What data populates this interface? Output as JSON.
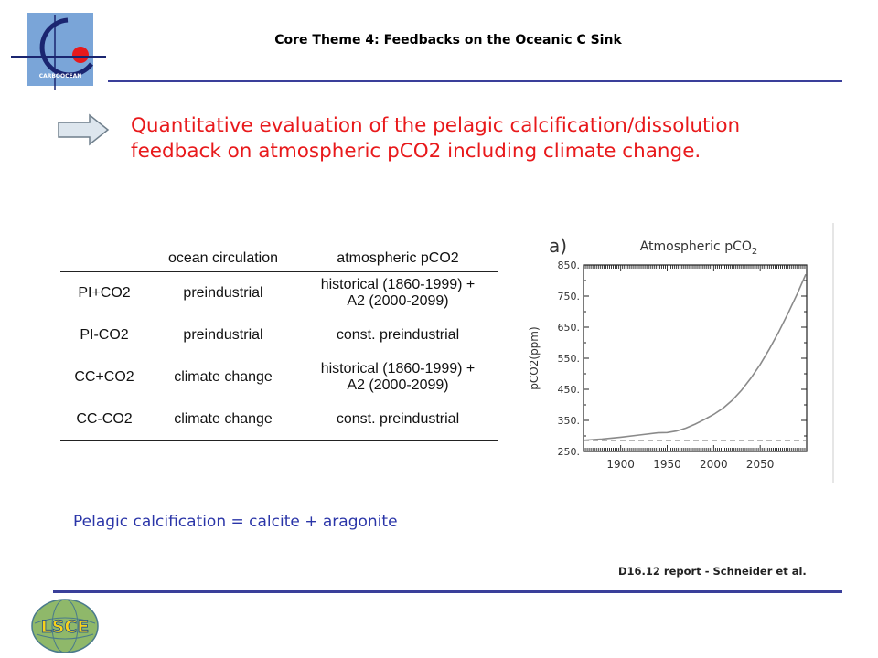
{
  "header": {
    "title": "Core Theme 4: Feedbacks on the Oceanic C Sink",
    "logo_text": "CARBOOCEAN"
  },
  "objective": {
    "line1": "Quantitative evaluation of the pelagic calcification/dissolution",
    "line2": "feedback on atmospheric pCO2 including climate change."
  },
  "table": {
    "headers": [
      "",
      "ocean circulation",
      "atmospheric pCO2"
    ],
    "rows": [
      {
        "id": "PI+CO2",
        "circulation": "preindustrial",
        "pco2": [
          "historical (1860-1999) +",
          "A2 (2000-2099)"
        ]
      },
      {
        "id": "PI-CO2",
        "circulation": "preindustrial",
        "pco2": [
          "const. preindustrial"
        ]
      },
      {
        "id": "CC+CO2",
        "circulation": "climate change",
        "pco2": [
          "historical (1860-1999) +",
          "A2 (2000-2099)"
        ]
      },
      {
        "id": "CC-CO2",
        "circulation": "climate change",
        "pco2": [
          "const. preindustrial"
        ]
      }
    ]
  },
  "chart_data": {
    "type": "line",
    "panel_label": "a)",
    "title": "Atmospheric pCO2",
    "ylabel": "pCO2(ppm)",
    "xlabel": "",
    "xlim": [
      1860,
      2100
    ],
    "ylim": [
      250,
      850
    ],
    "x_ticks": [
      1900,
      1950,
      2000,
      2050
    ],
    "y_ticks": [
      250,
      350,
      450,
      550,
      650,
      750,
      850
    ],
    "y_tick_labels": [
      "250.",
      "350.",
      "450.",
      "550.",
      "650.",
      "750.",
      "850."
    ],
    "grid": false,
    "series": [
      {
        "style": "solid",
        "x": [
          1860,
          1880,
          1900,
          1920,
          1940,
          1950,
          1960,
          1970,
          1980,
          1990,
          2000,
          2010,
          2020,
          2030,
          2040,
          2050,
          2060,
          2070,
          2080,
          2090,
          2099
        ],
        "y": [
          286,
          290,
          296,
          303,
          310,
          311,
          316,
          325,
          338,
          353,
          369,
          389,
          415,
          447,
          486,
          530,
          580,
          635,
          695,
          758,
          820
        ]
      },
      {
        "style": "dashed",
        "x": [
          1860,
          2099
        ],
        "y": [
          286,
          286
        ]
      }
    ],
    "colors": {
      "line": "#8a8a8a",
      "axis": "#222222"
    }
  },
  "definition": "Pelagic calcification = calcite + aragonite",
  "citation": "D16.12 report - Schneider et al.",
  "bottom_logo_text": "LSCE",
  "colors": {
    "accent_red": "#e8191b",
    "rule_blue": "#3a3f9a",
    "definition_blue": "#2a35a8"
  }
}
